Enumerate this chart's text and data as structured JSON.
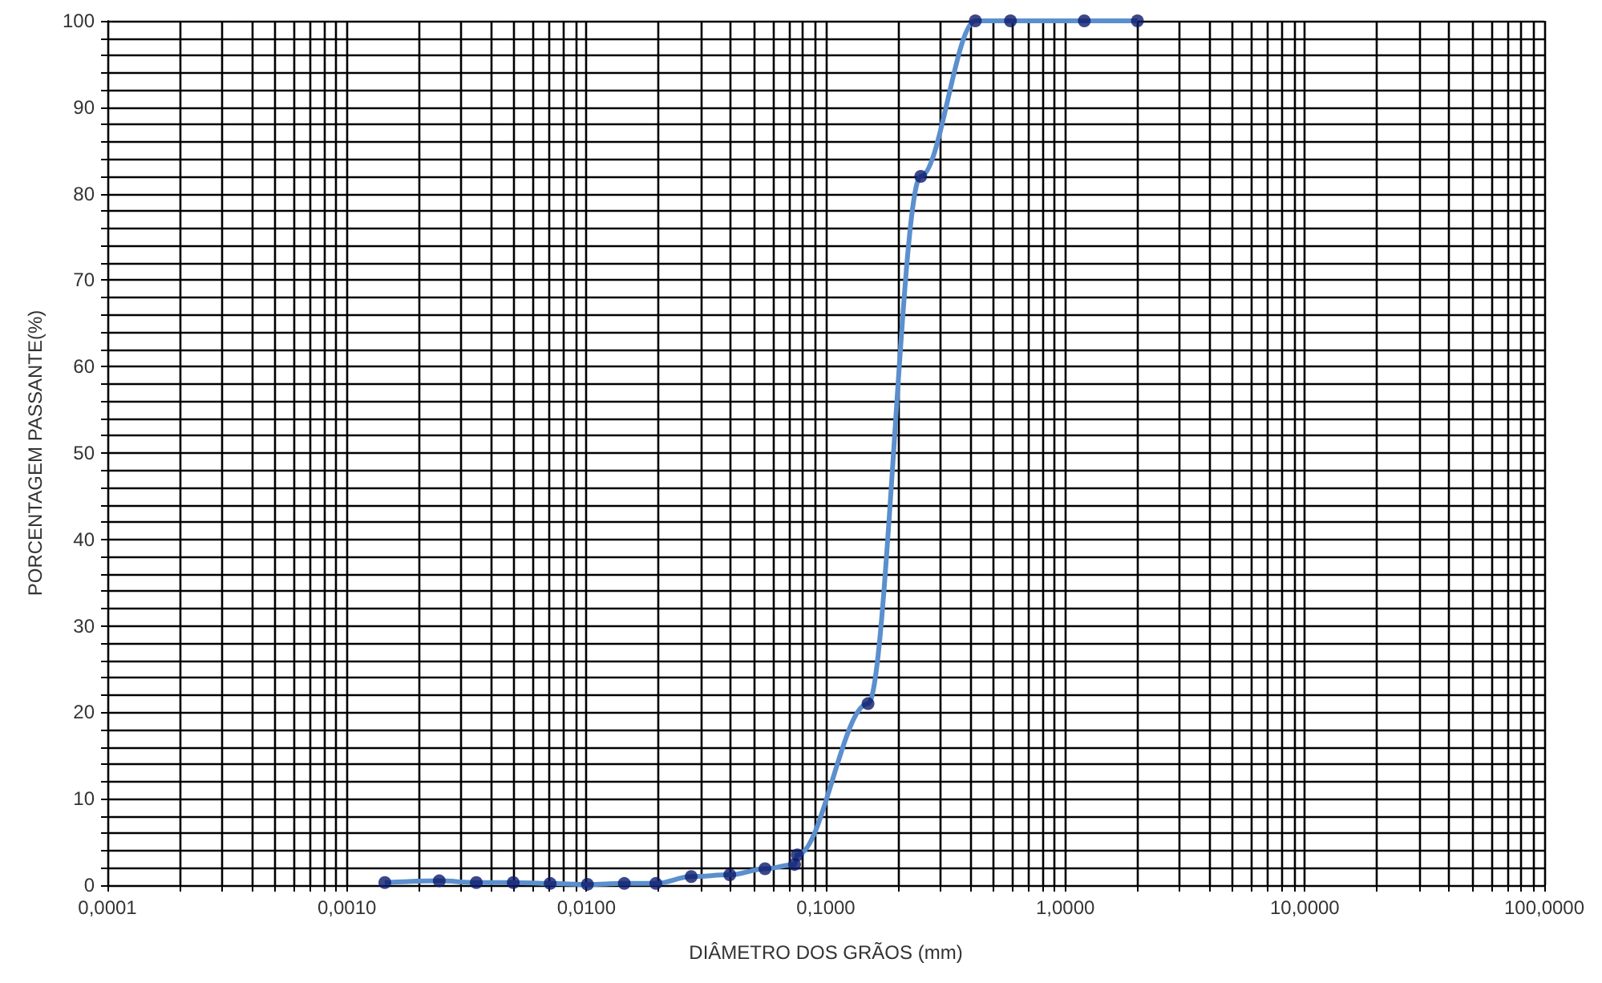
{
  "chart_data": {
    "type": "line",
    "xlabel": "DIÂMETRO DOS GRÃOS (mm)",
    "ylabel": "PORCENTAGEM PASSANTE(%)",
    "x": [
      0.00144,
      0.00243,
      0.00347,
      0.00495,
      0.00706,
      0.0101,
      0.0144,
      0.0195,
      0.0274,
      0.0397,
      0.0557,
      0.074,
      0.076,
      0.15,
      0.249,
      0.421,
      0.59,
      1.2,
      2.0
    ],
    "series": [
      {
        "color": "#5b8fce",
        "marker": "none",
        "values": [
          0.3,
          0.5,
          0.3,
          0.3,
          0.2,
          0.1,
          0.2,
          0.2,
          1,
          1.2,
          1.9,
          2.4,
          3.5,
          21,
          82,
          100,
          100,
          100,
          100
        ]
      },
      {
        "type": "scatter",
        "color": "#0d1a6b",
        "marker": "circle",
        "values": [
          0.3,
          0.5,
          0.3,
          0.3,
          0.2,
          0.1,
          0.2,
          0.2,
          1,
          1.2,
          1.9,
          2.4,
          3.5,
          21,
          82,
          100,
          100,
          100,
          100
        ]
      }
    ],
    "log": "x",
    "grid": true,
    "xlim": [
      0.0001,
      100
    ],
    "ylim": [
      0,
      100
    ],
    "xticks": [
      {
        "value": 0.0001,
        "label": "0,0001"
      },
      {
        "value": 0.0002,
        "label": null
      },
      {
        "value": 0.0003,
        "label": null
      },
      {
        "value": 0.0004,
        "label": null
      },
      {
        "value": 0.0005,
        "label": null
      },
      {
        "value": 0.0006,
        "label": null
      },
      {
        "value": 0.0007,
        "label": null
      },
      {
        "value": 0.0008,
        "label": null
      },
      {
        "value": 0.0009,
        "label": null
      },
      {
        "value": 0.001,
        "label": "0,0010"
      },
      {
        "value": 0.002,
        "label": null
      },
      {
        "value": 0.003,
        "label": null
      },
      {
        "value": 0.004,
        "label": null
      },
      {
        "value": 0.005,
        "label": null
      },
      {
        "value": 0.006,
        "label": null
      },
      {
        "value": 0.007,
        "label": null
      },
      {
        "value": 0.008,
        "label": null
      },
      {
        "value": 0.009,
        "label": null
      },
      {
        "value": 0.01,
        "label": "0,0100"
      },
      {
        "value": 0.02,
        "label": null
      },
      {
        "value": 0.03,
        "label": null
      },
      {
        "value": 0.04,
        "label": null
      },
      {
        "value": 0.05,
        "label": null
      },
      {
        "value": 0.06,
        "label": null
      },
      {
        "value": 0.07,
        "label": null
      },
      {
        "value": 0.08,
        "label": null
      },
      {
        "value": 0.09,
        "label": null
      },
      {
        "value": 0.1,
        "label": "0,1000"
      },
      {
        "value": 0.2,
        "label": null
      },
      {
        "value": 0.3,
        "label": null
      },
      {
        "value": 0.4,
        "label": null
      },
      {
        "value": 0.5,
        "label": null
      },
      {
        "value": 0.6,
        "label": null
      },
      {
        "value": 0.7,
        "label": null
      },
      {
        "value": 0.8,
        "label": null
      },
      {
        "value": 0.9,
        "label": null
      },
      {
        "value": 1,
        "label": "1,0000"
      },
      {
        "value": 2,
        "label": null
      },
      {
        "value": 3,
        "label": null
      },
      {
        "value": 4,
        "label": null
      },
      {
        "value": 5,
        "label": null
      },
      {
        "value": 6,
        "label": null
      },
      {
        "value": 7,
        "label": null
      },
      {
        "value": 8,
        "label": null
      },
      {
        "value": 9,
        "label": null
      },
      {
        "value": 10,
        "label": "10,0000"
      },
      {
        "value": 20,
        "label": null
      },
      {
        "value": 30,
        "label": null
      },
      {
        "value": 40,
        "label": null
      },
      {
        "value": 50,
        "label": null
      },
      {
        "value": 60,
        "label": null
      },
      {
        "value": 70,
        "label": null
      },
      {
        "value": 80,
        "label": null
      },
      {
        "value": 90,
        "label": null
      },
      {
        "value": 100,
        "label": "100,0000"
      }
    ],
    "yticks": [
      0,
      {
        "value": 2,
        "label": null
      },
      {
        "value": 4,
        "label": null
      },
      {
        "value": 6,
        "label": null
      },
      {
        "value": 8,
        "label": null
      },
      10,
      {
        "value": 12,
        "label": null
      },
      {
        "value": 14,
        "label": null
      },
      {
        "value": 16,
        "label": null
      },
      {
        "value": 18,
        "label": null
      },
      20,
      {
        "value": 22,
        "label": null
      },
      {
        "value": 24,
        "label": null
      },
      {
        "value": 26,
        "label": null
      },
      {
        "value": 28,
        "label": null
      },
      30,
      {
        "value": 32,
        "label": null
      },
      {
        "value": 34,
        "label": null
      },
      {
        "value": 36,
        "label": null
      },
      {
        "value": 38,
        "label": null
      },
      40,
      {
        "value": 42,
        "label": null
      },
      {
        "value": 44,
        "label": null
      },
      {
        "value": 46,
        "label": null
      },
      {
        "value": 48,
        "label": null
      },
      50,
      {
        "value": 52,
        "label": null
      },
      {
        "value": 54,
        "label": null
      },
      {
        "value": 56,
        "label": null
      },
      {
        "value": 58,
        "label": null
      },
      60,
      {
        "value": 62,
        "label": null
      },
      {
        "value": 64,
        "label": null
      },
      {
        "value": 66,
        "label": null
      },
      {
        "value": 68,
        "label": null
      },
      70,
      {
        "value": 72,
        "label": null
      },
      {
        "value": 74,
        "label": null
      },
      {
        "value": 76,
        "label": null
      },
      {
        "value": 78,
        "label": null
      },
      80,
      {
        "value": 82,
        "label": null
      },
      {
        "value": 84,
        "label": null
      },
      {
        "value": 86,
        "label": null
      },
      {
        "value": 88,
        "label": null
      },
      90,
      {
        "value": 92,
        "label": null
      },
      {
        "value": 94,
        "label": null
      },
      {
        "value": 96,
        "label": null
      },
      {
        "value": 98,
        "label": null
      },
      100
    ]
  }
}
